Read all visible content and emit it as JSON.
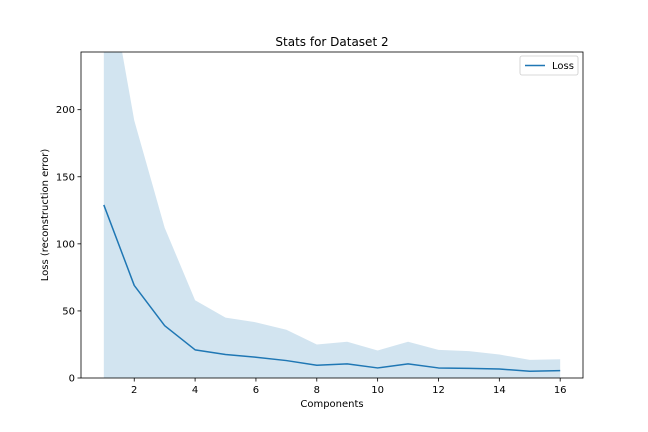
{
  "chart_data": {
    "type": "line",
    "title": "Stats for Dataset 2",
    "xlabel": "Components",
    "ylabel": "Loss (reconstruction error)",
    "xlim": [
      0.25,
      16.75
    ],
    "ylim": [
      0,
      243
    ],
    "x": [
      1,
      2,
      3,
      4,
      5,
      6,
      7,
      8,
      9,
      10,
      11,
      12,
      13,
      14,
      15,
      16
    ],
    "xticks": [
      2,
      4,
      6,
      8,
      10,
      12,
      14,
      16
    ],
    "yticks": [
      0,
      50,
      100,
      150,
      200
    ],
    "legend_position": "top-right",
    "series": [
      {
        "name": "Loss",
        "color": "#1f77b4",
        "values": [
          129,
          69,
          39,
          21,
          17.5,
          15.5,
          13,
          9.5,
          10.5,
          7.5,
          10.5,
          7.5,
          7.2,
          6.7,
          5,
          5.5
        ]
      }
    ],
    "band": {
      "color": "#1f77b4",
      "opacity": 0.2,
      "upper": [
        320,
        192,
        112,
        58,
        45,
        41.5,
        36,
        25,
        27,
        20.5,
        27,
        21,
        20,
        17.5,
        13.5,
        14
      ],
      "lower": [
        0,
        0,
        0,
        0,
        0,
        0,
        0,
        0,
        0,
        0,
        0,
        0,
        0,
        0,
        0,
        0
      ]
    }
  }
}
